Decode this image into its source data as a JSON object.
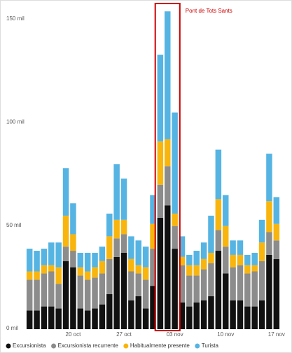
{
  "chart_data": {
    "type": "stacked_bar",
    "annotation": "Pont de Tots Sants",
    "categories": [
      null,
      null,
      null,
      null,
      null,
      null,
      "20 oct",
      null,
      null,
      null,
      null,
      null,
      null,
      "27 oct",
      null,
      null,
      null,
      null,
      null,
      null,
      "03 nov",
      null,
      null,
      null,
      null,
      null,
      null,
      "10 nov",
      null,
      null,
      null,
      null,
      null,
      null,
      "17 nov"
    ],
    "series": [
      {
        "name": "Excursionista",
        "color": "#111111",
        "values": [
          9,
          9,
          11,
          11,
          10,
          33,
          30,
          10,
          9,
          10,
          12,
          17,
          35,
          37,
          14,
          16,
          10,
          21,
          54,
          60,
          39,
          13,
          11,
          13,
          14,
          16,
          38,
          27,
          14,
          14,
          11,
          11,
          14,
          36,
          34
        ]
      },
      {
        "name": "Excursionista recurrente",
        "color": "#8c8c8c",
        "values": [
          15,
          15,
          16,
          17,
          12,
          7,
          8,
          16,
          15,
          15,
          15,
          17,
          9,
          9,
          14,
          11,
          14,
          18,
          16,
          19,
          11,
          18,
          15,
          13,
          15,
          16,
          10,
          13,
          16,
          17,
          16,
          17,
          19,
          11,
          9
        ]
      },
      {
        "name": "Habitualmente presente",
        "color": "#f8b50d",
        "values": [
          4,
          4,
          4,
          3,
          8,
          15,
          8,
          4,
          4,
          5,
          6,
          11,
          9,
          7,
          6,
          4,
          6,
          12,
          21,
          13,
          6,
          4,
          5,
          5,
          5,
          5,
          15,
          10,
          6,
          5,
          4,
          3,
          9,
          15,
          8
        ]
      },
      {
        "name": "Turista",
        "color": "#56b4e3",
        "values": [
          11,
          10,
          8,
          11,
          12,
          23,
          15,
          7,
          9,
          7,
          7,
          11,
          27,
          20,
          11,
          12,
          10,
          14,
          42,
          62,
          49,
          10,
          5,
          7,
          8,
          18,
          24,
          15,
          7,
          7,
          5,
          6,
          11,
          23,
          13
        ]
      }
    ],
    "ylim": [
      0,
      150
    ],
    "yticks": [
      {
        "value": 0,
        "label": "0 mil"
      },
      {
        "value": 50,
        "label": "50 mil"
      },
      {
        "value": 100,
        "label": "100 mil"
      },
      {
        "value": 150,
        "label": "150 mil"
      }
    ],
    "grid": false
  }
}
